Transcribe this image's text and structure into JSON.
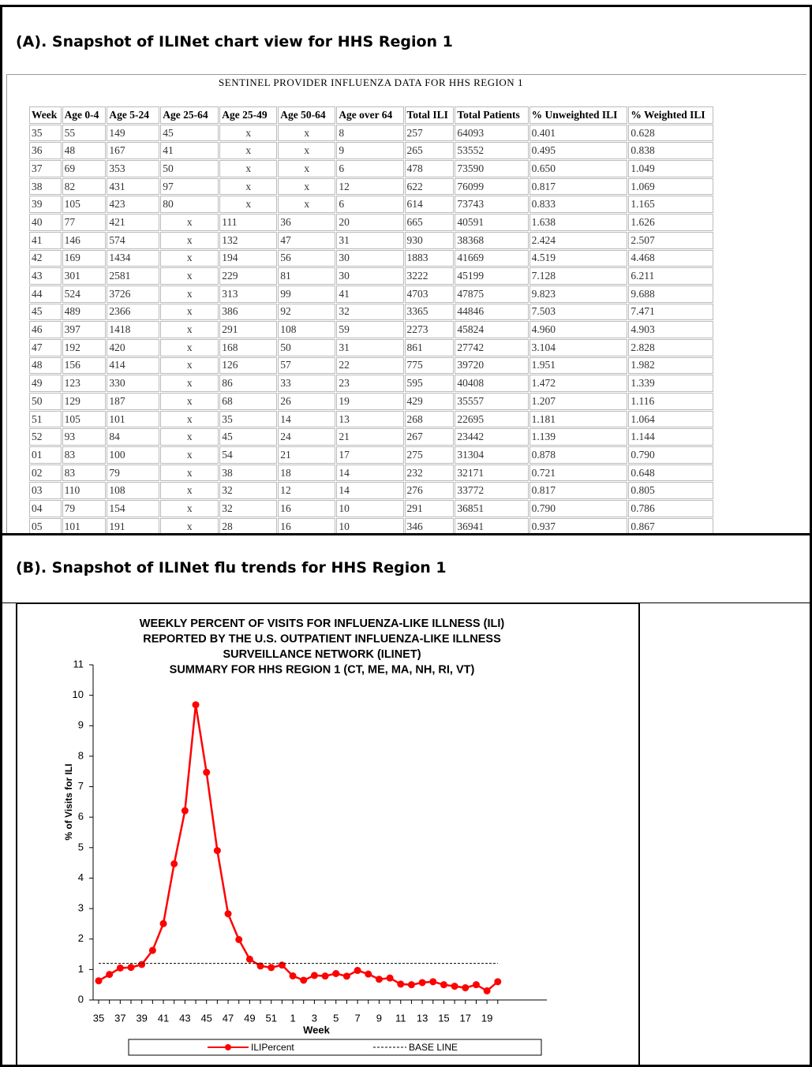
{
  "panel_a": {
    "title": "(A). Snapshot of ILINet chart view for HHS Region 1",
    "table": {
      "caption": "SENTINEL PROVIDER INFLUENZA DATA FOR HHS REGION 1",
      "header": [
        "Week",
        "Age 0-4",
        "Age 5-24",
        "Age 25-64",
        "Age 25-49",
        "Age 50-64",
        "Age over 64",
        "Total ILI",
        "Total Patients",
        "% Unweighted ILI",
        "% Weighted ILI"
      ],
      "rows": [
        [
          "35",
          "55",
          "149",
          "45",
          "x",
          "x",
          "8",
          "257",
          "64093",
          "0.401",
          "0.628"
        ],
        [
          "36",
          "48",
          "167",
          "41",
          "x",
          "x",
          "9",
          "265",
          "53552",
          "0.495",
          "0.838"
        ],
        [
          "37",
          "69",
          "353",
          "50",
          "x",
          "x",
          "6",
          "478",
          "73590",
          "0.650",
          "1.049"
        ],
        [
          "38",
          "82",
          "431",
          "97",
          "x",
          "x",
          "12",
          "622",
          "76099",
          "0.817",
          "1.069"
        ],
        [
          "39",
          "105",
          "423",
          "80",
          "x",
          "x",
          "6",
          "614",
          "73743",
          "0.833",
          "1.165"
        ],
        [
          "40",
          "77",
          "421",
          "x",
          "111",
          "36",
          "20",
          "665",
          "40591",
          "1.638",
          "1.626"
        ],
        [
          "41",
          "146",
          "574",
          "x",
          "132",
          "47",
          "31",
          "930",
          "38368",
          "2.424",
          "2.507"
        ],
        [
          "42",
          "169",
          "1434",
          "x",
          "194",
          "56",
          "30",
          "1883",
          "41669",
          "4.519",
          "4.468"
        ],
        [
          "43",
          "301",
          "2581",
          "x",
          "229",
          "81",
          "30",
          "3222",
          "45199",
          "7.128",
          "6.211"
        ],
        [
          "44",
          "524",
          "3726",
          "x",
          "313",
          "99",
          "41",
          "4703",
          "47875",
          "9.823",
          "9.688"
        ],
        [
          "45",
          "489",
          "2366",
          "x",
          "386",
          "92",
          "32",
          "3365",
          "44846",
          "7.503",
          "7.471"
        ],
        [
          "46",
          "397",
          "1418",
          "x",
          "291",
          "108",
          "59",
          "2273",
          "45824",
          "4.960",
          "4.903"
        ],
        [
          "47",
          "192",
          "420",
          "x",
          "168",
          "50",
          "31",
          "861",
          "27742",
          "3.104",
          "2.828"
        ],
        [
          "48",
          "156",
          "414",
          "x",
          "126",
          "57",
          "22",
          "775",
          "39720",
          "1.951",
          "1.982"
        ],
        [
          "49",
          "123",
          "330",
          "x",
          "86",
          "33",
          "23",
          "595",
          "40408",
          "1.472",
          "1.339"
        ],
        [
          "50",
          "129",
          "187",
          "x",
          "68",
          "26",
          "19",
          "429",
          "35557",
          "1.207",
          "1.116"
        ],
        [
          "51",
          "105",
          "101",
          "x",
          "35",
          "14",
          "13",
          "268",
          "22695",
          "1.181",
          "1.064"
        ],
        [
          "52",
          "93",
          "84",
          "x",
          "45",
          "24",
          "21",
          "267",
          "23442",
          "1.139",
          "1.144"
        ],
        [
          "01",
          "83",
          "100",
          "x",
          "54",
          "21",
          "17",
          "275",
          "31304",
          "0.878",
          "0.790"
        ],
        [
          "02",
          "83",
          "79",
          "x",
          "38",
          "18",
          "14",
          "232",
          "32171",
          "0.721",
          "0.648"
        ],
        [
          "03",
          "110",
          "108",
          "x",
          "32",
          "12",
          "14",
          "276",
          "33772",
          "0.817",
          "0.805"
        ],
        [
          "04",
          "79",
          "154",
          "x",
          "32",
          "16",
          "10",
          "291",
          "36851",
          "0.790",
          "0.786"
        ],
        [
          "05",
          "101",
          "191",
          "x",
          "28",
          "16",
          "10",
          "346",
          "36941",
          "0.937",
          "0.867"
        ]
      ]
    }
  },
  "panel_b": {
    "title": "(B). Snapshot of ILINet flu trends for HHS Region 1"
  },
  "chart_data": {
    "type": "line",
    "title": [
      "WEEKLY PERCENT OF VISITS FOR INFLUENZA-LIKE ILLNESS (ILI)",
      "REPORTED BY THE U.S. OUTPATIENT INFLUENZA-LIKE ILLNESS",
      "SURVEILLANCE NETWORK (ILINET)",
      "SUMMARY FOR HHS REGION 1 (CT, ME, MA, NH, RI, VT)"
    ],
    "x_label": "Week",
    "y_label": "% of Visits for ILI",
    "categories": [
      "35",
      null,
      "37",
      null,
      "39",
      null,
      "41",
      null,
      "43",
      null,
      "45",
      null,
      "47",
      null,
      "49",
      null,
      "51",
      null,
      "1",
      null,
      "3",
      null,
      "5",
      null,
      "7",
      null,
      "9",
      null,
      "11",
      null,
      "13",
      null,
      "15",
      null,
      "17",
      null,
      "19",
      null
    ],
    "series": [
      {
        "name": "ILIPercent",
        "color": "#ff0000",
        "values": [
          0.628,
          0.838,
          1.049,
          1.069,
          1.165,
          1.626,
          2.507,
          4.468,
          6.211,
          9.688,
          7.471,
          4.903,
          2.828,
          1.982,
          1.339,
          1.116,
          1.064,
          1.144,
          0.79,
          0.648,
          0.805,
          0.786,
          0.867,
          0.78,
          0.97,
          0.85,
          0.68,
          0.72,
          0.52,
          0.5,
          0.57,
          0.6,
          0.5,
          0.45,
          0.4,
          0.5,
          0.3,
          0.6
        ]
      },
      {
        "name": "BASE LINE",
        "color": "#000000",
        "dashed": true,
        "values": [
          1.2,
          1.2,
          1.2,
          1.2,
          1.2,
          1.2,
          1.2,
          1.2,
          1.2,
          1.2,
          1.2,
          1.2,
          1.2,
          1.2,
          1.2,
          1.2,
          1.2,
          1.2,
          1.2,
          1.2,
          1.2,
          1.2,
          1.2,
          1.2,
          1.2,
          1.2,
          1.2,
          1.2,
          1.2,
          1.2,
          1.2,
          1.2,
          1.2,
          1.2,
          1.2,
          1.2,
          1.2,
          1.2
        ]
      }
    ],
    "ylim": [
      0,
      11
    ],
    "yticks": [
      0,
      1,
      2,
      3,
      4,
      5,
      6,
      7,
      8,
      9,
      10,
      11
    ],
    "legend": "bottom"
  }
}
